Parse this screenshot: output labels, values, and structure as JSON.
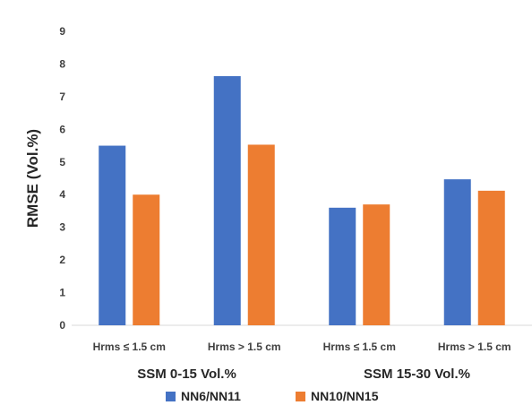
{
  "chart_data": {
    "type": "bar",
    "title": "",
    "xlabel": "",
    "ylabel": "RMSE (Vol.%)",
    "ylim": [
      0,
      9
    ],
    "yticks": [
      0,
      1,
      2,
      3,
      4,
      5,
      6,
      7,
      8,
      9
    ],
    "grid": false,
    "legend_position": "bottom",
    "categories": [
      "Hrms ≤ 1.5 cm",
      "Hrms > 1.5 cm",
      "Hrms ≤ 1.5 cm",
      "Hrms > 1.5 cm"
    ],
    "groups": [
      {
        "label": "SSM 0-15 Vol.%",
        "categories": [
          0,
          1
        ]
      },
      {
        "label": "SSM 15-30 Vol.%",
        "categories": [
          2,
          3
        ]
      }
    ],
    "series": [
      {
        "name": "NN6/NN11",
        "color": "#4472C4",
        "values": [
          5.5,
          7.63,
          3.6,
          4.47
        ]
      },
      {
        "name": "NN10/NN15",
        "color": "#ED7D31",
        "values": [
          4.0,
          5.53,
          3.7,
          4.12
        ]
      }
    ]
  }
}
